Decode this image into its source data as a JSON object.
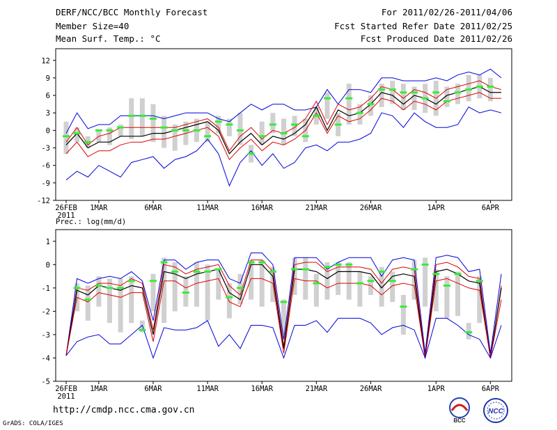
{
  "header": {
    "title": "DERF/NCC/BCC Monthly Forecast",
    "member": "Member Size=40",
    "variable": "Mean Surf. Temp.: °C",
    "period": "For 2011/02/26-2011/04/06",
    "start": "Fcst Started Refer Date 2011/02/25",
    "produced": "Fcst Produced Date 2011/02/26"
  },
  "footer": {
    "url": "http://cmdp.ncc.cma.gov.cn",
    "grads": "GrADS: COLA/IGES",
    "logo_left": "BCC",
    "logo_right": "NCC"
  },
  "colors": {
    "ensemble_max_min": "#0000dd",
    "spread_band": "#dd0000",
    "ensemble_mean": "#000000",
    "box": "#d0d0d0",
    "mark": "#33ee33"
  },
  "chart_data": [
    {
      "type": "line",
      "title": "",
      "ylabel": "Mean Surf. Temp.: °C",
      "ylim": [
        -12,
        14
      ],
      "yticks": [
        -12,
        -9,
        -6,
        -3,
        0,
        3,
        6,
        9,
        12
      ],
      "x_ticks": [
        {
          "day": 0,
          "label": "26FEB",
          "label2": "2011"
        },
        {
          "day": 3,
          "label": "1MAR"
        },
        {
          "day": 8,
          "label": "6MAR"
        },
        {
          "day": 13,
          "label": "11MAR"
        },
        {
          "day": 18,
          "label": "16MAR"
        },
        {
          "day": 23,
          "label": "21MAR"
        },
        {
          "day": 28,
          "label": "26MAR"
        },
        {
          "day": 34,
          "label": "1APR"
        },
        {
          "day": 39,
          "label": "6APR"
        }
      ],
      "series": [
        {
          "name": "max",
          "values": [
            -0.5,
            3.0,
            0.3,
            1.0,
            1.0,
            2.5,
            2.5,
            2.5,
            2.5,
            2.0,
            2.5,
            3.0,
            3.0,
            3.0,
            2.0,
            1.5,
            3.0,
            4.5,
            3.5,
            4.5,
            4.5,
            3.5,
            3.5,
            4.0,
            7.0,
            4.5,
            7.0,
            7.0,
            6.5,
            9.0,
            9.0,
            8.5,
            8.5,
            8.5,
            9.0,
            8.5,
            9.5,
            10.0,
            9.5,
            10.5,
            9.0
          ]
        },
        {
          "name": "upper",
          "values": [
            -2.0,
            0.5,
            -2.5,
            -1.0,
            -0.5,
            0.5,
            0.5,
            0.5,
            0.5,
            0.5,
            0.5,
            1.0,
            1.5,
            2.0,
            0.5,
            -3.5,
            -1.0,
            0.5,
            -1.5,
            0.0,
            -0.5,
            0.5,
            2.0,
            5.0,
            1.0,
            4.5,
            3.5,
            4.0,
            5.5,
            7.5,
            7.0,
            5.5,
            7.0,
            6.5,
            5.5,
            7.0,
            7.5,
            8.0,
            8.5,
            7.5,
            7.0
          ]
        },
        {
          "name": "mean",
          "values": [
            -2.5,
            -0.5,
            -3.0,
            -2.0,
            -2.0,
            -1.0,
            -1.0,
            -1.0,
            -0.5,
            -0.5,
            0.0,
            0.5,
            1.0,
            1.5,
            0.0,
            -4.0,
            -2.0,
            -0.5,
            -2.5,
            -1.0,
            -1.5,
            -0.5,
            1.0,
            4.0,
            0.0,
            3.5,
            2.5,
            3.0,
            4.5,
            6.5,
            6.0,
            4.5,
            6.0,
            5.5,
            4.5,
            6.0,
            6.5,
            7.0,
            7.5,
            6.5,
            6.5
          ]
        },
        {
          "name": "lower",
          "values": [
            -4.0,
            -2.0,
            -4.5,
            -3.5,
            -3.5,
            -2.5,
            -2.0,
            -2.0,
            -1.5,
            -1.5,
            -1.0,
            -0.5,
            0.0,
            0.5,
            -1.0,
            -5.0,
            -3.0,
            -1.5,
            -3.5,
            -2.0,
            -2.5,
            -1.5,
            0.0,
            3.0,
            -0.5,
            2.5,
            1.5,
            2.0,
            3.5,
            5.5,
            5.0,
            3.5,
            5.0,
            4.5,
            3.5,
            5.0,
            5.5,
            6.0,
            6.5,
            5.5,
            5.5
          ]
        },
        {
          "name": "min",
          "values": [
            -8.5,
            -7.0,
            -8.0,
            -6.0,
            -7.0,
            -8.0,
            -5.5,
            -5.0,
            -4.5,
            -6.5,
            -5.0,
            -4.5,
            -3.5,
            -1.5,
            -4.0,
            -9.5,
            -5.5,
            -3.5,
            -6.0,
            -4.0,
            -6.5,
            -5.5,
            -3.0,
            -2.5,
            -3.5,
            -2.0,
            -2.0,
            -1.5,
            -0.5,
            3.0,
            2.5,
            0.5,
            3.0,
            1.5,
            0.5,
            0.5,
            1.0,
            4.0,
            3.0,
            3.5,
            3.0
          ]
        }
      ],
      "boxes": [
        {
          "day": 0,
          "low": -4.0,
          "high": 1.5,
          "mark": -1.0
        },
        {
          "day": 1,
          "low": -2.0,
          "high": 0.5,
          "mark": -0.5
        },
        {
          "day": 2,
          "low": -3.0,
          "high": -1.0,
          "mark": -2.0
        },
        {
          "day": 3,
          "low": -2.0,
          "high": 0.0,
          "mark": 0.0
        },
        {
          "day": 4,
          "low": -2.5,
          "high": 0.5,
          "mark": 0.0
        },
        {
          "day": 5,
          "low": -1.0,
          "high": 1.0,
          "mark": 0.5
        },
        {
          "day": 6,
          "low": -1.5,
          "high": 5.5,
          "mark": 2.5
        },
        {
          "day": 7,
          "low": -1.0,
          "high": 5.5,
          "mark": 2.5
        },
        {
          "day": 8,
          "low": -2.0,
          "high": 4.5,
          "mark": 2.0
        },
        {
          "day": 9,
          "low": -3.0,
          "high": 2.5,
          "mark": 0.5
        },
        {
          "day": 10,
          "low": -3.5,
          "high": 1.0,
          "mark": 0.0
        },
        {
          "day": 11,
          "low": -2.5,
          "high": 1.5,
          "mark": 0.0
        },
        {
          "day": 12,
          "low": -2.0,
          "high": 2.0,
          "mark": 0.0
        },
        {
          "day": 13,
          "low": -2.0,
          "high": 1.5,
          "mark": -1.0
        },
        {
          "day": 14,
          "low": -0.5,
          "high": 2.5,
          "mark": 1.5
        },
        {
          "day": 15,
          "low": -1.0,
          "high": 2.0,
          "mark": 1.0
        },
        {
          "day": 16,
          "low": -2.5,
          "high": 3.0,
          "mark": 0.0
        },
        {
          "day": 17,
          "low": -5.5,
          "high": -2.5,
          "mark": -4.0
        },
        {
          "day": 18,
          "low": -2.5,
          "high": 1.5,
          "mark": -1.0
        },
        {
          "day": 19,
          "low": -0.5,
          "high": 3.0,
          "mark": 1.0
        },
        {
          "day": 20,
          "low": -2.5,
          "high": 2.0,
          "mark": -0.5
        },
        {
          "day": 21,
          "low": -1.0,
          "high": 2.5,
          "mark": 1.0
        },
        {
          "day": 22,
          "low": -2.0,
          "high": 2.0,
          "mark": -1.0
        },
        {
          "day": 23,
          "low": 1.0,
          "high": 4.0,
          "mark": 2.5
        },
        {
          "day": 24,
          "low": 2.0,
          "high": 6.5,
          "mark": 5.5
        },
        {
          "day": 25,
          "low": -1.0,
          "high": 3.0,
          "mark": 1.0
        },
        {
          "day": 26,
          "low": 1.0,
          "high": 8.0,
          "mark": 5.5
        },
        {
          "day": 27,
          "low": 1.0,
          "high": 4.5,
          "mark": 3.0
        },
        {
          "day": 28,
          "low": 2.5,
          "high": 6.0,
          "mark": 4.5
        },
        {
          "day": 29,
          "low": 4.0,
          "high": 8.0,
          "mark": 7.0
        },
        {
          "day": 30,
          "low": 4.5,
          "high": 8.5,
          "mark": 7.0
        },
        {
          "day": 31,
          "low": 3.5,
          "high": 8.0,
          "mark": 6.5
        },
        {
          "day": 32,
          "low": 3.5,
          "high": 7.5,
          "mark": 6.5
        },
        {
          "day": 33,
          "low": 3.0,
          "high": 8.0,
          "mark": 5.5
        },
        {
          "day": 34,
          "low": 2.5,
          "high": 8.5,
          "mark": 6.5
        },
        {
          "day": 35,
          "low": 4.0,
          "high": 7.5,
          "mark": 5.0
        },
        {
          "day": 36,
          "low": 4.5,
          "high": 8.0,
          "mark": 6.5
        },
        {
          "day": 37,
          "low": 5.0,
          "high": 9.5,
          "mark": 7.0
        },
        {
          "day": 38,
          "low": 5.5,
          "high": 9.5,
          "mark": 7.5
        },
        {
          "day": 39,
          "low": 5.0,
          "high": 9.0,
          "mark": 7.5
        }
      ]
    },
    {
      "type": "line",
      "title": "Prec.: log(mm/d)",
      "ylabel": "Prec.: log(mm/d)",
      "ylim": [
        -5,
        1.5
      ],
      "yticks": [
        -5,
        -4,
        -3,
        -2,
        -1,
        0,
        1
      ],
      "x_ticks": [
        {
          "day": 0,
          "label": "26FEB",
          "label2": "2011"
        },
        {
          "day": 3,
          "label": "1MAR"
        },
        {
          "day": 8,
          "label": "6MAR"
        },
        {
          "day": 13,
          "label": "11MAR"
        },
        {
          "day": 18,
          "label": "16MAR"
        },
        {
          "day": 23,
          "label": "21MAR"
        },
        {
          "day": 28,
          "label": "26MAR"
        },
        {
          "day": 34,
          "label": "1APR"
        },
        {
          "day": 39,
          "label": "6APR"
        }
      ],
      "series": [
        {
          "name": "max",
          "values": [
            -3.9,
            -0.6,
            -0.8,
            -0.6,
            -0.5,
            -0.6,
            -0.3,
            -0.7,
            -2.4,
            0.2,
            0.2,
            -0.2,
            0.1,
            0.2,
            0.2,
            -0.6,
            -0.8,
            0.5,
            0.5,
            0.0,
            -3.2,
            0.3,
            0.3,
            0.3,
            -0.2,
            0.1,
            0.3,
            0.3,
            0.3,
            -0.5,
            0.2,
            0.3,
            0.2,
            -3.8,
            0.3,
            0.4,
            0.3,
            -0.3,
            -0.2,
            -3.8,
            -0.4
          ]
        },
        {
          "name": "upper",
          "values": [
            -3.9,
            -1.0,
            -1.1,
            -0.8,
            -0.8,
            -0.9,
            -0.6,
            -0.8,
            -2.8,
            0.0,
            -0.1,
            -0.4,
            -0.2,
            -0.1,
            0.0,
            -0.9,
            -1.3,
            0.2,
            0.2,
            -0.3,
            -3.5,
            0.0,
            0.1,
            0.1,
            -0.3,
            -0.1,
            -0.1,
            -0.1,
            -0.2,
            -0.8,
            -0.2,
            -0.1,
            -0.2,
            -4.0,
            0.0,
            0.1,
            -0.1,
            -0.5,
            -0.6,
            -4.0,
            -0.9
          ]
        },
        {
          "name": "mean",
          "values": [
            -3.9,
            -1.1,
            -1.3,
            -0.9,
            -1.0,
            -1.1,
            -0.9,
            -1.0,
            -3.0,
            -0.3,
            -0.4,
            -0.6,
            -0.4,
            -0.3,
            -0.2,
            -1.2,
            -1.5,
            0.0,
            0.0,
            -0.5,
            -3.6,
            -0.2,
            -0.2,
            -0.3,
            -0.6,
            -0.3,
            -0.3,
            -0.3,
            -0.4,
            -1.0,
            -0.5,
            -0.4,
            -0.5,
            -4.0,
            -0.3,
            -0.2,
            -0.4,
            -0.7,
            -0.8,
            -4.0,
            -1.0
          ]
        },
        {
          "name": "lower",
          "values": [
            -3.9,
            -1.4,
            -1.6,
            -1.2,
            -1.3,
            -1.4,
            -1.2,
            -1.2,
            -3.3,
            -0.7,
            -0.7,
            -1.0,
            -0.8,
            -0.7,
            -0.6,
            -1.6,
            -1.8,
            -0.6,
            -0.6,
            -0.8,
            -3.8,
            -0.6,
            -0.7,
            -0.7,
            -1.0,
            -0.8,
            -0.8,
            -0.8,
            -0.9,
            -1.3,
            -0.9,
            -0.8,
            -0.9,
            -4.0,
            -0.7,
            -0.6,
            -0.8,
            -1.0,
            -1.1,
            -4.0,
            -1.5
          ]
        },
        {
          "name": "min",
          "values": [
            -3.9,
            -3.3,
            -3.1,
            -3.0,
            -3.4,
            -3.4,
            -3.0,
            -2.6,
            -4.0,
            -2.7,
            -2.8,
            -2.8,
            -2.7,
            -2.4,
            -3.5,
            -3.0,
            -3.6,
            -2.6,
            -2.6,
            -2.7,
            -4.0,
            -2.6,
            -2.6,
            -2.4,
            -2.9,
            -2.3,
            -2.3,
            -2.3,
            -2.5,
            -3.0,
            -2.7,
            -2.6,
            -2.8,
            -4.0,
            -2.3,
            -2.3,
            -2.6,
            -3.0,
            -3.2,
            -4.0,
            -2.6
          ]
        }
      ],
      "boxes": [
        {
          "day": 1,
          "low": -2.0,
          "high": -0.8,
          "mark": -1.0
        },
        {
          "day": 2,
          "low": -2.4,
          "high": -0.9,
          "mark": -1.5
        },
        {
          "day": 3,
          "low": -1.8,
          "high": -0.5,
          "mark": -0.9
        },
        {
          "day": 4,
          "low": -2.5,
          "high": -0.6,
          "mark": -1.0
        },
        {
          "day": 5,
          "low": -2.9,
          "high": -0.6,
          "mark": -1.0
        },
        {
          "day": 6,
          "low": -2.5,
          "high": -0.5,
          "mark": -0.7
        },
        {
          "day": 7,
          "low": -2.9,
          "high": -2.4,
          "mark": -2.8
        },
        {
          "day": 8,
          "low": -2.0,
          "high": -0.4,
          "mark": -0.7
        },
        {
          "day": 9,
          "low": -2.5,
          "high": 0.3,
          "mark": 0.1
        },
        {
          "day": 10,
          "low": -2.0,
          "high": 0.1,
          "mark": -0.3
        },
        {
          "day": 11,
          "low": -1.8,
          "high": -0.5,
          "mark": -1.2
        },
        {
          "day": 12,
          "low": -1.8,
          "high": 0.1,
          "mark": -0.3
        },
        {
          "day": 13,
          "low": -2.4,
          "high": 0.0,
          "mark": -0.3
        },
        {
          "day": 14,
          "low": -1.5,
          "high": -0.2,
          "mark": -0.2
        },
        {
          "day": 15,
          "low": -2.3,
          "high": -0.8,
          "mark": -1.4
        },
        {
          "day": 16,
          "low": -1.7,
          "high": -0.4,
          "mark": -1.0
        },
        {
          "day": 17,
          "low": -1.5,
          "high": 0.2,
          "mark": 0.1
        },
        {
          "day": 18,
          "low": -1.8,
          "high": 0.2,
          "mark": 0.1
        },
        {
          "day": 19,
          "low": -1.6,
          "high": -0.1,
          "mark": -0.3
        },
        {
          "day": 20,
          "low": -3.0,
          "high": -1.5,
          "mark": -1.6
        },
        {
          "day": 21,
          "low": -1.3,
          "high": 0.3,
          "mark": -0.2
        },
        {
          "day": 22,
          "low": -1.5,
          "high": 0.3,
          "mark": -0.2
        },
        {
          "day": 23,
          "low": -1.8,
          "high": -0.4,
          "mark": -0.8
        },
        {
          "day": 24,
          "low": -1.5,
          "high": 0.1,
          "mark": -0.1
        },
        {
          "day": 25,
          "low": -1.3,
          "high": 0.1,
          "mark": 0.0
        },
        {
          "day": 26,
          "low": -1.5,
          "high": 0.1,
          "mark": 0.0
        },
        {
          "day": 27,
          "low": -1.8,
          "high": -0.3,
          "mark": -0.8
        },
        {
          "day": 28,
          "low": -1.3,
          "high": -0.5,
          "mark": -0.7
        },
        {
          "day": 29,
          "low": -1.8,
          "high": -0.1,
          "mark": -0.3
        },
        {
          "day": 30,
          "low": -1.6,
          "high": -0.3,
          "mark": -0.7
        },
        {
          "day": 31,
          "low": -3.0,
          "high": -1.3,
          "mark": -1.8
        },
        {
          "day": 32,
          "low": -1.5,
          "high": 0.2,
          "mark": -0.2
        },
        {
          "day": 33,
          "low": -1.8,
          "high": 0.3,
          "mark": 0.0
        },
        {
          "day": 34,
          "low": -2.0,
          "high": -0.2,
          "mark": -0.4
        },
        {
          "day": 35,
          "low": -2.3,
          "high": -0.5,
          "mark": -0.9
        },
        {
          "day": 36,
          "low": -2.2,
          "high": -0.3,
          "mark": -0.4
        },
        {
          "day": 37,
          "low": -3.2,
          "high": -2.5,
          "mark": -2.9
        },
        {
          "day": 38,
          "low": -2.5,
          "high": -0.5,
          "mark": -0.7
        }
      ]
    }
  ]
}
